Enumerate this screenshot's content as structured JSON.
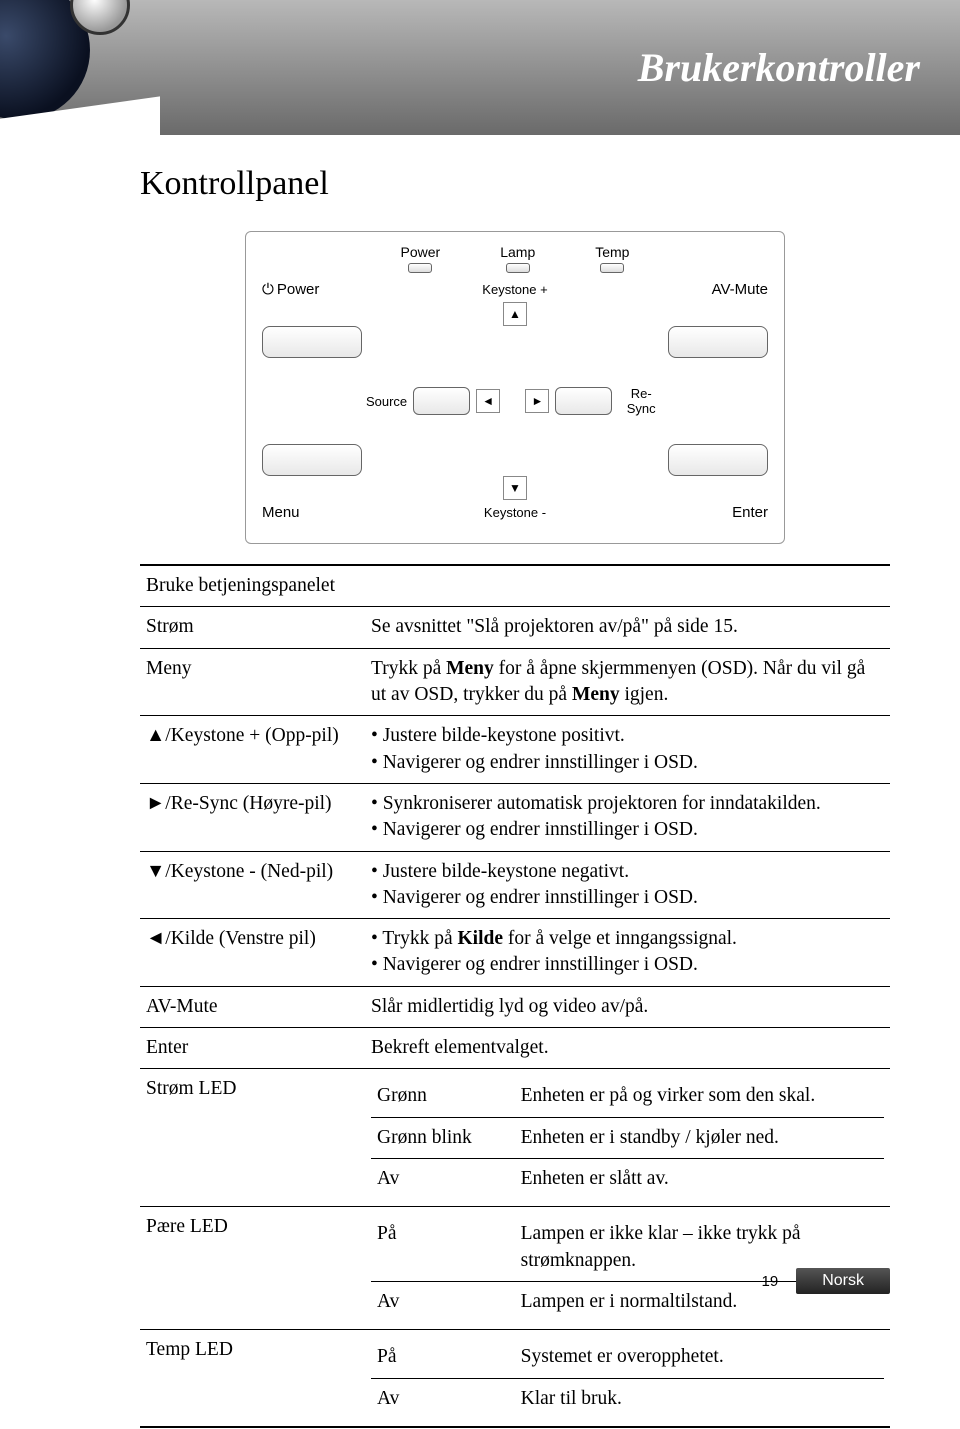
{
  "header": {
    "title": "Brukerkontroller"
  },
  "section_title": "Kontrollpanel",
  "diagram": {
    "leds": [
      "Power",
      "Lamp",
      "Temp"
    ],
    "row1_left": "Power",
    "row1_center": "Keystone +",
    "row1_right": "AV-Mute",
    "row2_left_center": "Source",
    "row2_right_center": "Re-Sync",
    "row3_left": "Menu",
    "row3_center": "Keystone -",
    "row3_right": "Enter",
    "arrows": {
      "up": "▲",
      "down": "▼",
      "left": "◄",
      "right": "►"
    }
  },
  "table": {
    "header_row": "Bruke betjeningspanelet",
    "rows": [
      {
        "label": "Strøm",
        "desc": "Se avsnittet \"Slå projektoren av/på\" på side 15."
      },
      {
        "label": "Meny",
        "desc": "Trykk på <b>Meny</b> for å åpne skjermmenyen (OSD). Når du vil gå ut av OSD, trykker du på <b>Meny</b> igjen."
      },
      {
        "label": "▲/Keystone + (Opp-pil)",
        "bullets": [
          "Justere bilde-keystone positivt.",
          "Navigerer og endrer innstillinger i OSD."
        ]
      },
      {
        "label": "►/Re-Sync (Høyre-pil)",
        "bullets": [
          "Synkroniserer automatisk projektoren for inndatakilden.",
          "Navigerer og endrer innstillinger i OSD."
        ]
      },
      {
        "label": "▼/Keystone - (Ned-pil)",
        "bullets": [
          "Justere bilde-keystone negativt.",
          "Navigerer og endrer innstillinger i OSD."
        ]
      },
      {
        "label": "◄/Kilde (Venstre pil)",
        "bullets": [
          "Trykk på <b>Kilde</b> for å velge et inngangssignal.",
          "Navigerer og endrer innstillinger i OSD."
        ]
      },
      {
        "label": "AV-Mute",
        "desc": "Slår midlertidig lyd og video av/på."
      },
      {
        "label": "Enter",
        "desc": "Bekreft elementvalget."
      }
    ],
    "led_rows": [
      {
        "label": "Strøm LED",
        "sub": [
          {
            "k": "Grønn",
            "v": "Enheten er på og virker som den skal."
          },
          {
            "k": "Grønn blink",
            "v": "Enheten er i standby / kjøler ned."
          },
          {
            "k": "Av",
            "v": "Enheten er slått av."
          }
        ]
      },
      {
        "label": "Pære LED",
        "sub": [
          {
            "k": "På",
            "v": "Lampen er ikke klar – ikke trykk på strømknappen."
          },
          {
            "k": "Av",
            "v": "Lampen er i normaltilstand."
          }
        ]
      },
      {
        "label": "Temp LED",
        "sub": [
          {
            "k": "På",
            "v": "Systemet er overopphetet."
          },
          {
            "k": "Av",
            "v": "Klar til bruk."
          }
        ]
      }
    ]
  },
  "footer": {
    "page": "19",
    "lang": "Norsk"
  },
  "colors": {
    "header_grad_top": "#b8b8b8",
    "header_grad_bottom": "#6a6a6a",
    "text": "#000000",
    "bg": "#ffffff",
    "tab_bg": "#333333",
    "tab_fg": "#ffffff"
  }
}
